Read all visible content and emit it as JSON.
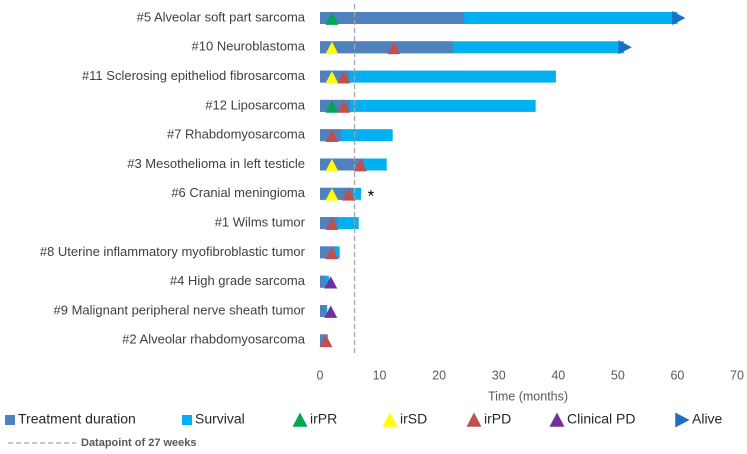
{
  "chart_data": {
    "type": "swimmer",
    "x_label": "Time (months)",
    "categories": [
      "#5 Alveolar soft part sarcoma",
      "#10 Neuroblastoma",
      "#11 Sclerosing epitheliod fibrosarcoma",
      "#12 Liposarcoma",
      "#7 Rhabdomyosarcoma",
      "#3 Mesothelioma in left testicle",
      "#6 Cranial meningioma",
      "#1 Wilms tumor",
      "#8 Uterine inflammatory myofibroblastic tumor",
      "#4 High grade sarcoma",
      "#9 Malignant peripheral nerve sheath tumor",
      "#2 Alveolar rhabdomyosarcoma"
    ],
    "series": [
      {
        "name": "Treatment duration",
        "color": "#4f81bd",
        "kind": "bar",
        "values": [
          24.2,
          22.3,
          5,
          5,
          3.5,
          7.4,
          5.5,
          3,
          2.5,
          1,
          1,
          1.3
        ]
      },
      {
        "name": "Survival",
        "color": "#00b0f0",
        "kind": "bar",
        "values": [
          60,
          51,
          39.6,
          36.2,
          12.2,
          11.2,
          6.9,
          6.5,
          3.3,
          1.5,
          1.2,
          null
        ]
      },
      {
        "name": "irPR",
        "color": "#00a651",
        "kind": "triangle",
        "values": [
          2,
          null,
          null,
          2,
          null,
          null,
          null,
          null,
          null,
          null,
          null,
          null
        ]
      },
      {
        "name": "irSD",
        "color": "#ffff00",
        "kind": "triangle",
        "values": [
          null,
          2,
          2,
          null,
          null,
          2,
          2,
          null,
          null,
          null,
          null,
          null
        ]
      },
      {
        "name": "irPD",
        "color": "#c0504d",
        "kind": "triangle",
        "values": [
          null,
          12.4,
          4,
          4,
          2,
          6.8,
          4.8,
          2,
          2,
          null,
          null,
          1
        ]
      },
      {
        "name": "Clinical PD",
        "color": "#7030a0",
        "kind": "triangle",
        "values": [
          null,
          null,
          null,
          null,
          null,
          null,
          null,
          null,
          null,
          1.8,
          1.8,
          null
        ]
      },
      {
        "name": "Alive",
        "color": "#1f6fc0",
        "kind": "arrow",
        "values": [
          60,
          51,
          null,
          null,
          null,
          null,
          null,
          null,
          null,
          null,
          null,
          null
        ]
      }
    ],
    "reference_line": {
      "name": "Datapoint of 27 weeks",
      "value": 5.8,
      "color": "#a6a6a6"
    },
    "annotations": [
      {
        "text": "*",
        "x": 8,
        "category": "#6 Cranial meningioma"
      }
    ],
    "xlim": [
      0,
      70
    ],
    "xticks": [
      0,
      10,
      20,
      30,
      40,
      50,
      60,
      70
    ]
  }
}
